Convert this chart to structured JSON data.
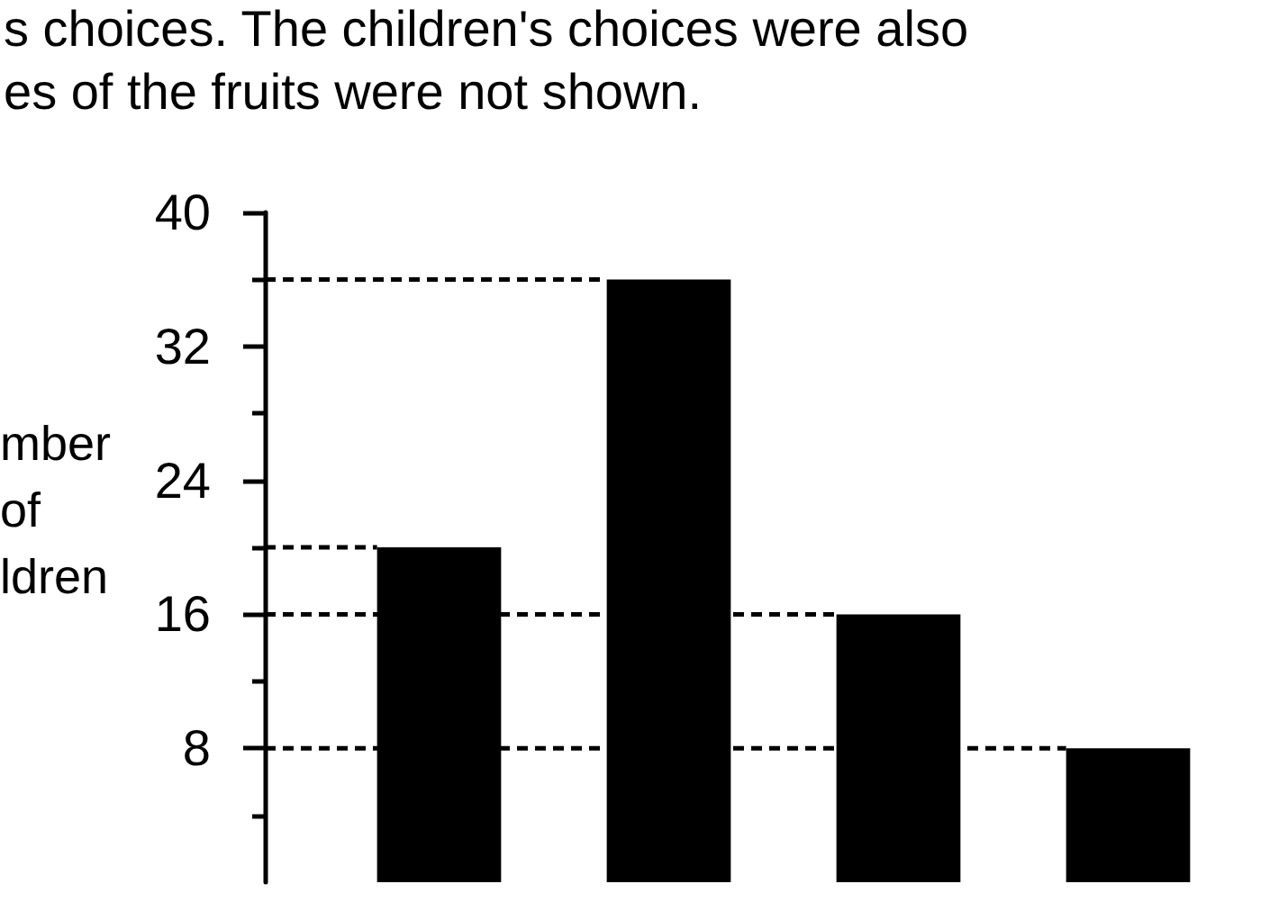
{
  "chart_data": {
    "type": "bar",
    "annotations": [
      "s choices. The children's choices were also",
      "es of the fruits were not shown."
    ],
    "ylabel": "mber of ldren",
    "categories": [
      null,
      null,
      null,
      null
    ],
    "values": [
      20,
      36,
      16,
      8
    ],
    "color": "#000000",
    "ylim": [
      0,
      40
    ],
    "yticks": [
      {
        "value": 4,
        "label": null
      },
      8,
      {
        "value": 12,
        "label": null
      },
      16,
      {
        "value": 20,
        "label": null
      },
      24,
      {
        "value": 28,
        "label": null
      },
      32,
      {
        "value": 36,
        "label": null
      },
      40
    ],
    "tick_labels": "y",
    "ref_lines": [
      {
        "axis": "y",
        "value": 36,
        "color": "#000000",
        "line_style": "dashed"
      },
      {
        "axis": "y",
        "value": 20,
        "color": "#000000",
        "line_style": "dashed"
      },
      {
        "axis": "y",
        "value": 16,
        "color": "#000000",
        "line_style": "dashed"
      },
      {
        "axis": "y",
        "value": 8,
        "color": "#000000",
        "line_style": "dashed"
      }
    ]
  }
}
